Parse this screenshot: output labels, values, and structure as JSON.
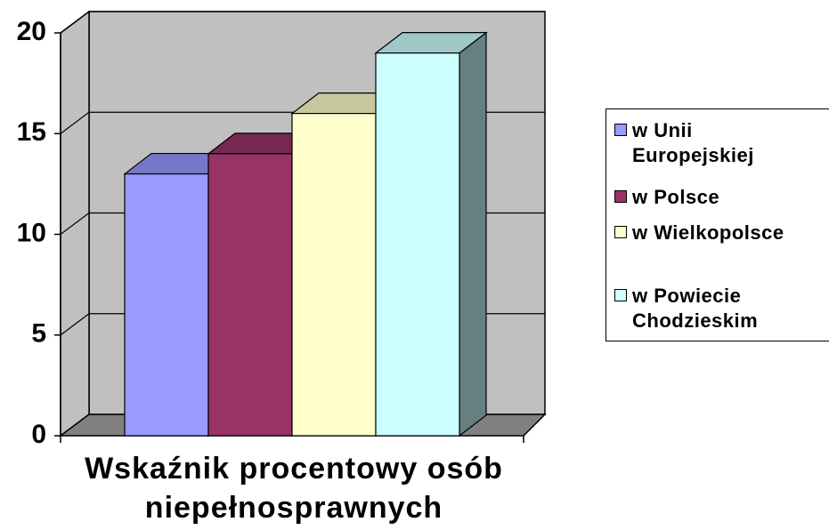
{
  "chart_data": {
    "type": "bar3d",
    "categories": [
      "Wskaźnik procentowy osób niepełnosprawnych"
    ],
    "series": [
      {
        "name": "w Unii Europejskiej",
        "color": "#9999ff",
        "values": [
          13
        ]
      },
      {
        "name": "w Polsce",
        "color": "#993366",
        "values": [
          14
        ]
      },
      {
        "name": "w Wielkopolsce",
        "color": "#ffffcc",
        "values": [
          16
        ]
      },
      {
        "name": "w Powiecie Chodzieskim",
        "color": "#ccffff",
        "values": [
          19
        ]
      }
    ],
    "ylim": [
      0,
      20
    ],
    "yticks": [
      0,
      5,
      10,
      15,
      20
    ],
    "grid": true,
    "legend": "right"
  }
}
